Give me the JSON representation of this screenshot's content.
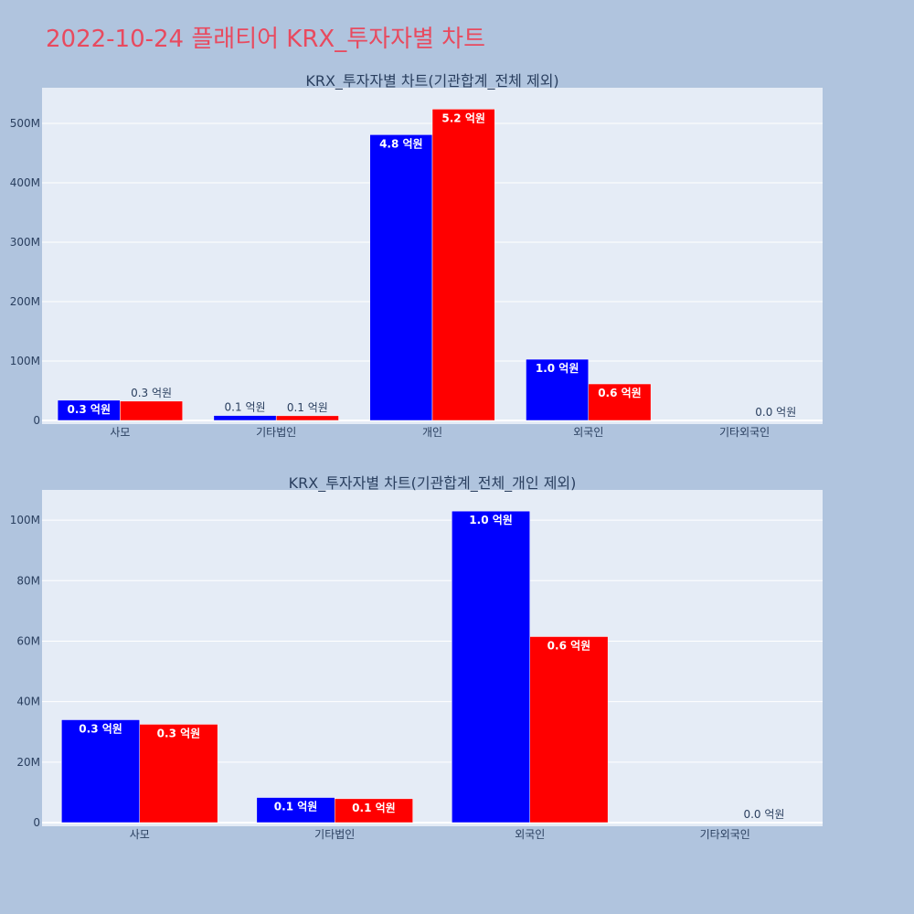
{
  "page": {
    "title": "2022-10-24 플래티어 KRX_투자자별 차트",
    "title_color": "#e84a5f",
    "background": "#b0c4de",
    "plot_background": "#e5ecf6",
    "grid_color": "#ffffff"
  },
  "chart_data": [
    {
      "type": "bar",
      "title": "KRX_투자자별 차트(기관합계_전체 제외)",
      "categories": [
        "사모",
        "기타법인",
        "개인",
        "외국인",
        "기타외국인"
      ],
      "series": [
        {
          "color": "#0000ff",
          "values": [
            34000000,
            8300000,
            481000000,
            103000000,
            0
          ],
          "labels": [
            "0.3 억원",
            "0.1 억원",
            "4.8 억원",
            "1.0 억원",
            ""
          ]
        },
        {
          "color": "#ff0000",
          "values": [
            32500000,
            7900000,
            524000000,
            61500000,
            0
          ],
          "labels": [
            "0.3 억원",
            "0.1 억원",
            "5.2 억원",
            "0.6 억원",
            "0.0 억원"
          ]
        }
      ],
      "ylim": [
        0,
        560000000
      ],
      "yticks": [
        0,
        100000000,
        200000000,
        300000000,
        400000000,
        500000000
      ],
      "ytick_labels": [
        "0",
        "100M",
        "200M",
        "300M",
        "400M",
        "500M"
      ],
      "grid": true,
      "barmode": "group",
      "legend": false
    },
    {
      "type": "bar",
      "title": "KRX_투자자별 차트(기관합계_전체_개인 제외)",
      "categories": [
        "사모",
        "기타법인",
        "외국인",
        "기타외국인"
      ],
      "series": [
        {
          "color": "#0000ff",
          "values": [
            34000000,
            8300000,
            103000000,
            0
          ],
          "labels": [
            "0.3 억원",
            "0.1 억원",
            "1.0 억원",
            ""
          ]
        },
        {
          "color": "#ff0000",
          "values": [
            32500000,
            7900000,
            61500000,
            0
          ],
          "labels": [
            "0.3 억원",
            "0.1 억원",
            "0.6 억원",
            "0.0 억원"
          ]
        }
      ],
      "ylim": [
        0,
        110000000
      ],
      "yticks": [
        0,
        20000000,
        40000000,
        60000000,
        80000000,
        100000000
      ],
      "ytick_labels": [
        "0",
        "20M",
        "40M",
        "60M",
        "80M",
        "100M"
      ],
      "grid": true,
      "barmode": "group",
      "legend": false
    }
  ]
}
